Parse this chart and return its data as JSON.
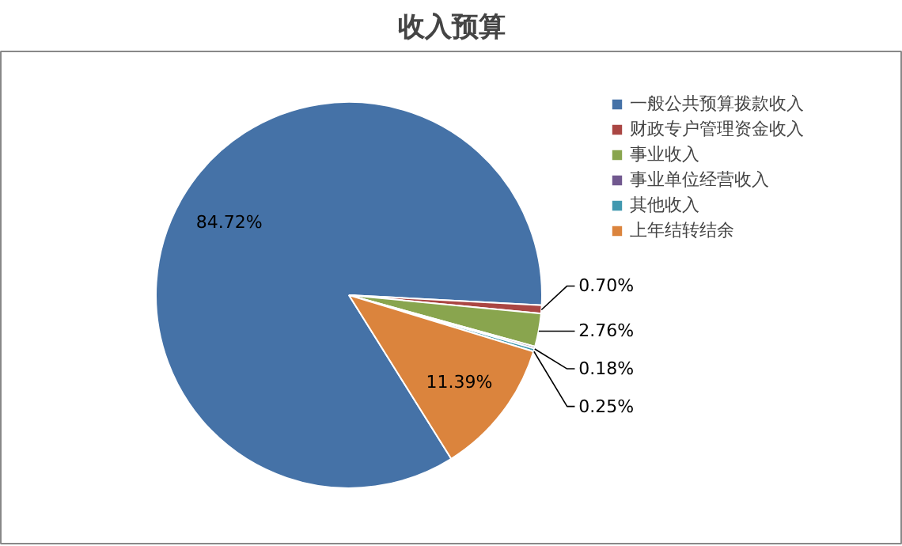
{
  "chart_data": {
    "type": "pie",
    "title": "收入预算",
    "categories": [
      "一般公共预算拨款收入",
      "财政专户管理资金收入",
      "事业收入",
      "事业单位经营收入",
      "其他收入",
      "上年结转结余"
    ],
    "values": [
      84.72,
      0.7,
      2.76,
      0.18,
      0.25,
      11.39
    ],
    "value_labels": [
      "84.72%",
      "0.70%",
      "2.76%",
      "0.18%",
      "0.25%",
      "11.39%"
    ],
    "colors": [
      "#4572a7",
      "#aa4643",
      "#89a54e",
      "#71588f",
      "#4198af",
      "#db843d"
    ],
    "legend": "right"
  }
}
